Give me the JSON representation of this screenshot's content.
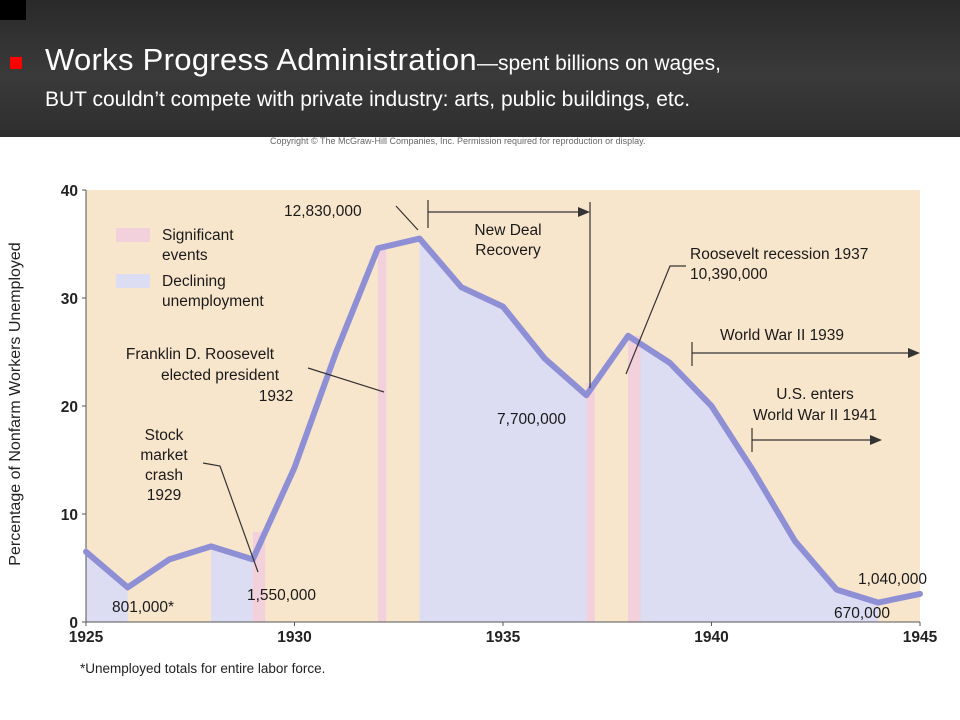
{
  "slide": {
    "headline_main": "Works Progress Administration",
    "headline_tail": "—spent billions on wages,",
    "headline_line2": "BUT couldn’t compete with private industry: arts, public buildings, etc.",
    "copyright": "Copyright © The McGraw-Hill Companies, Inc. Permission required for reproduction or display.",
    "footnote": "*Unemployed totals for entire labor force."
  },
  "chart_data": {
    "type": "area",
    "ylabel": "Percentage of Nonfarm Workers Unemployed",
    "xlabel": "",
    "xlim": [
      1925,
      1945
    ],
    "ylim": [
      0,
      40
    ],
    "x_ticks": [
      "1925",
      "1930",
      "1935",
      "1940",
      "1945"
    ],
    "y_ticks": [
      "0",
      "10",
      "20",
      "30",
      "40"
    ],
    "colors": {
      "plot_bg": "#f8e6cc",
      "line": "#8f8fd6",
      "declining_fill": "#dcdcf2",
      "event_fill": "#f2d0dc"
    },
    "series": [
      {
        "x": [
          1925,
          1926,
          1927,
          1928,
          1929,
          1930,
          1931,
          1932,
          1933,
          1934,
          1935,
          1936,
          1937,
          1938,
          1939,
          1940,
          1941,
          1942,
          1943,
          1944,
          1945
        ],
        "values": [
          6.5,
          3.2,
          5.8,
          7.0,
          5.8,
          14.3,
          25.0,
          34.6,
          35.5,
          31.0,
          29.2,
          24.4,
          21.0,
          26.5,
          24.0,
          20.0,
          14.0,
          7.5,
          3.0,
          1.8,
          2.6
        ]
      }
    ],
    "legend": [
      {
        "label_line1": "Significant",
        "label_line2": "events",
        "color": "#f2d0dc"
      },
      {
        "label_line1": "Declining",
        "label_line2": "unemployment",
        "color": "#dcdcf2"
      }
    ],
    "legend_position": "top-left",
    "declining_ranges": [
      [
        1925,
        1926
      ],
      [
        1928,
        1929
      ],
      [
        1933,
        1937
      ],
      [
        1938,
        1944
      ]
    ],
    "event_bands": [
      [
        1929,
        1929.3
      ],
      [
        1932,
        1932.2
      ],
      [
        1937,
        1937.2
      ],
      [
        1938,
        1938.3
      ]
    ],
    "annotations": {
      "a801": "801,000*",
      "a1550": "1,550,000",
      "a12830": "12,830,000",
      "a7700": "7,700,000",
      "a1040": "1,040,000",
      "a670": "670,000",
      "stock_1": "Stock",
      "stock_2": "market",
      "stock_3": "crash",
      "stock_4": "1929",
      "fdr_1": "Franklin D. Roosevelt",
      "fdr_2": "elected president",
      "fdr_3": "1932",
      "newdeal_1": "New Deal",
      "newdeal_2": "Recovery",
      "rr_1": "Roosevelt recession 1937",
      "rr_2": "10,390,000",
      "ww2_1939": "World War II 1939",
      "us_1": "U.S. enters",
      "us_2": "World War II 1941"
    }
  }
}
